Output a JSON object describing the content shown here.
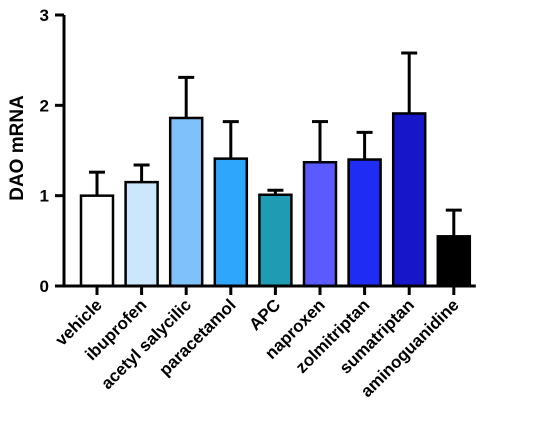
{
  "chart_data": {
    "type": "bar",
    "title": "",
    "xlabel": "",
    "ylabel": "DAO mRNA",
    "ylim": [
      0,
      3
    ],
    "yticks": [
      0,
      1,
      2,
      3
    ],
    "categories": [
      "vehicle",
      "ibuprofen",
      "acetyl salycilic",
      "paracetamol",
      "APC",
      "naproxen",
      "zolmitriptan",
      "sumatriptan",
      "aminoguanidine"
    ],
    "values": [
      1.0,
      1.15,
      1.86,
      1.41,
      1.01,
      1.37,
      1.4,
      1.91,
      0.55
    ],
    "error_plus": [
      0.26,
      0.19,
      0.45,
      0.41,
      0.05,
      0.45,
      0.3,
      0.67,
      0.29
    ],
    "colors": [
      "#ffffff",
      "#cce6fb",
      "#7fc2fb",
      "#2ea6fb",
      "#1f9bb3",
      "#5a5aff",
      "#1f2cf4",
      "#1717c9",
      "#000000"
    ],
    "grid": false,
    "legend": "none"
  }
}
